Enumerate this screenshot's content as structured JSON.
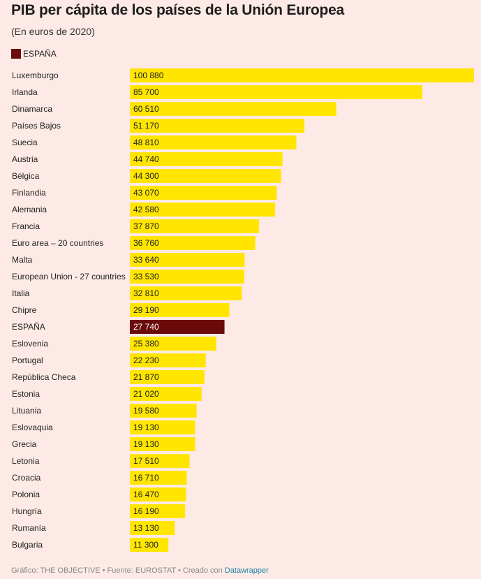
{
  "header": {
    "title": "PIB per cápita de los países de la Unión Europea",
    "subtitle": "(En euros de 2020)"
  },
  "legend": {
    "label": "ESPAÑA",
    "color": "#6b0a0a"
  },
  "colors": {
    "bar": "#ffe500",
    "highlight": "#6b0a0a",
    "background": "#fdeae6"
  },
  "footer": {
    "text": "Gráfico: THE OBJECTIVE • Fuente: EUROSTAT • Creado con ",
    "link": "Datawrapper"
  },
  "chart_data": {
    "type": "bar",
    "orientation": "horizontal",
    "categories": [
      "Luxemburgo",
      "Irlanda",
      "Dinamarca",
      "Países Bajos",
      "Suecia",
      "Austria",
      "Bélgica",
      "Finlandia",
      "Alemania",
      "Francia",
      "Euro area – 20 countries",
      "Malta",
      "European Union - 27 countries",
      "Italia",
      "Chipre",
      "ESPAÑA",
      "Eslovenia",
      "Portugal",
      "República Checa",
      "Estonia",
      "Lituania",
      "Eslovaquia",
      "Grecia",
      "Letonia",
      "Croacia",
      "Polonia",
      "Hungría",
      "Rumanía",
      "Bulgaria"
    ],
    "values": [
      100880,
      85700,
      60510,
      51170,
      48810,
      44740,
      44300,
      43070,
      42580,
      37870,
      36760,
      33640,
      33530,
      32810,
      29190,
      27740,
      25380,
      22230,
      21870,
      21020,
      19580,
      19130,
      19130,
      17510,
      16710,
      16470,
      16190,
      13130,
      11300
    ],
    "value_labels": [
      "100 880",
      "85 700",
      "60 510",
      "51 170",
      "48 810",
      "44 740",
      "44 300",
      "43 070",
      "42 580",
      "37 870",
      "36 760",
      "33 640",
      "33 530",
      "32 810",
      "29 190",
      "27 740",
      "25 380",
      "22 230",
      "21 870",
      "21 020",
      "19 580",
      "19 130",
      "19 130",
      "17 510",
      "16 710",
      "16 470",
      "16 190",
      "13 130",
      "11 300"
    ],
    "highlight": "ESPAÑA",
    "xlim": [
      0,
      100880
    ],
    "grid": false,
    "legend_position": "top-left"
  }
}
